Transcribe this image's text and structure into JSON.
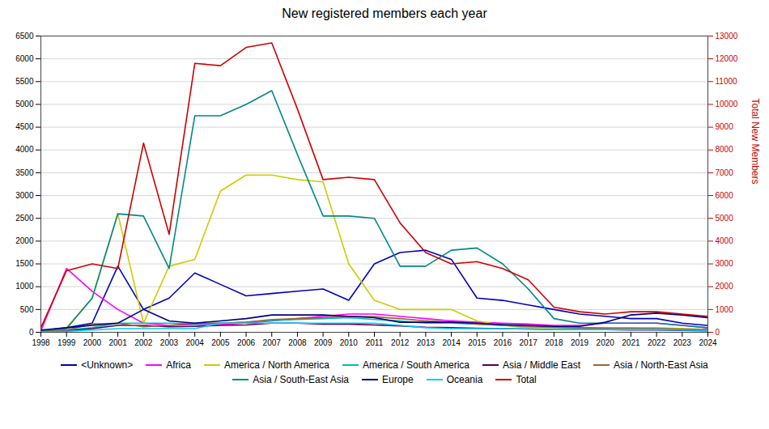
{
  "chart_data": {
    "type": "line",
    "title": "New registered members each year",
    "x": [
      1998,
      1999,
      2000,
      2001,
      2002,
      2003,
      2004,
      2005,
      2006,
      2007,
      2008,
      2009,
      2010,
      2011,
      2012,
      2013,
      2014,
      2015,
      2016,
      2017,
      2018,
      2019,
      2020,
      2021,
      2022,
      2023,
      2024
    ],
    "xlim": [
      1998,
      2024
    ],
    "xticks": [
      1998,
      1999,
      2000,
      2001,
      2002,
      2003,
      2004,
      2005,
      2006,
      2007,
      2008,
      2009,
      2010,
      2011,
      2012,
      2013,
      2014,
      2015,
      2016,
      2017,
      2018,
      2019,
      2020,
      2021,
      2022,
      2023,
      2024
    ],
    "ylim": [
      0,
      6500
    ],
    "yticks": [
      0,
      500,
      1000,
      1500,
      2000,
      2500,
      3000,
      3500,
      4000,
      4500,
      5000,
      5500,
      6000,
      6500
    ],
    "y2lim": [
      0,
      13000
    ],
    "y2ticks": [
      0,
      1000,
      2000,
      3000,
      4000,
      5000,
      6000,
      7000,
      8000,
      9000,
      10000,
      11000,
      12000,
      13000
    ],
    "y2label": "Total New Members",
    "grid": true,
    "legend": "bottom",
    "series": [
      {
        "name": "<Unknown>",
        "color": "#0000bb",
        "values": [
          30,
          100,
          200,
          1450,
          500,
          750,
          1300,
          1050,
          800,
          850,
          900,
          950,
          700,
          1500,
          1750,
          1800,
          1600,
          750,
          700,
          600,
          500,
          400,
          350,
          300,
          300,
          200,
          150
        ]
      },
      {
        "name": "Africa",
        "color": "#ff00ff",
        "values": [
          30,
          1400,
          900,
          500,
          200,
          150,
          170,
          170,
          200,
          250,
          300,
          350,
          400,
          400,
          350,
          300,
          250,
          220,
          200,
          180,
          150,
          150,
          200,
          200,
          200,
          150,
          100
        ]
      },
      {
        "name": "America / North America",
        "color": "#cccc00",
        "values": [
          30,
          100,
          750,
          2600,
          200,
          1450,
          1600,
          3100,
          3450,
          3450,
          3350,
          3300,
          1500,
          700,
          500,
          500,
          500,
          250,
          150,
          100,
          100,
          100,
          100,
          100,
          100,
          80,
          60
        ]
      },
      {
        "name": "America / South America",
        "color": "#00bbbb",
        "values": [
          20,
          50,
          100,
          200,
          200,
          200,
          180,
          200,
          220,
          260,
          280,
          300,
          320,
          280,
          250,
          200,
          200,
          180,
          150,
          130,
          110,
          100,
          90,
          80,
          80,
          60,
          50
        ]
      },
      {
        "name": "Asia / Middle East",
        "color": "#550055",
        "values": [
          10,
          30,
          80,
          150,
          150,
          120,
          130,
          150,
          160,
          200,
          200,
          180,
          180,
          160,
          140,
          110,
          100,
          90,
          80,
          70,
          60,
          60,
          60,
          50,
          50,
          40,
          30
        ]
      },
      {
        "name": "Asia / North-East Asia",
        "color": "#996633",
        "values": [
          20,
          50,
          180,
          200,
          120,
          150,
          200,
          200,
          220,
          280,
          300,
          320,
          350,
          340,
          300,
          250,
          220,
          180,
          150,
          130,
          110,
          100,
          90,
          90,
          80,
          70,
          60
        ]
      },
      {
        "name": "Asia / South-East Asia",
        "color": "#008888",
        "values": [
          30,
          80,
          750,
          2600,
          2550,
          1400,
          4750,
          4750,
          5000,
          5300,
          3900,
          2550,
          2550,
          2500,
          1450,
          1450,
          1800,
          1850,
          1500,
          950,
          300,
          200,
          200,
          200,
          200,
          150,
          100
        ]
      },
      {
        "name": "Europe",
        "color": "#000080",
        "values": [
          50,
          100,
          150,
          200,
          500,
          250,
          200,
          250,
          300,
          380,
          380,
          380,
          350,
          320,
          220,
          220,
          220,
          200,
          170,
          150,
          130,
          130,
          220,
          380,
          420,
          380,
          320
        ]
      },
      {
        "name": "Oceania",
        "color": "#00ccff",
        "values": [
          10,
          20,
          50,
          80,
          80,
          80,
          80,
          200,
          200,
          200,
          200,
          200,
          200,
          200,
          150,
          100,
          80,
          80,
          80,
          70,
          60,
          60,
          60,
          60,
          60,
          50,
          40
        ]
      },
      {
        "name": "Total",
        "color": "#cc0000",
        "axis": "y2",
        "values": [
          200,
          2700,
          3000,
          2800,
          8300,
          4300,
          11800,
          11700,
          12500,
          12700,
          9800,
          6700,
          6800,
          6700,
          4800,
          3500,
          3000,
          3100,
          2800,
          2300,
          1100,
          900,
          800,
          900,
          900,
          800,
          700
        ]
      }
    ]
  }
}
